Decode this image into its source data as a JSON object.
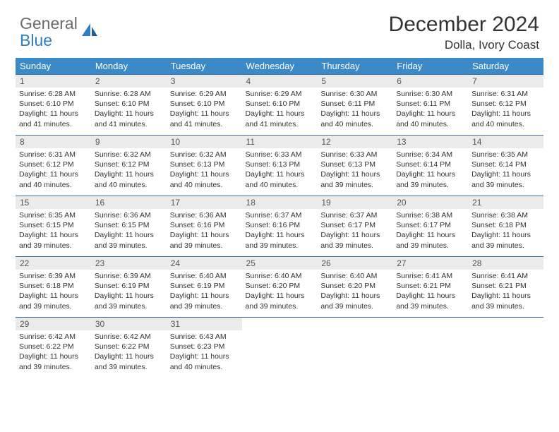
{
  "brand": {
    "line1": "General",
    "line2": "Blue"
  },
  "title": "December 2024",
  "location": "Dolla, Ivory Coast",
  "colors": {
    "header_bg": "#3b89c7",
    "header_text": "#ffffff",
    "daynum_bg": "#ebebeb",
    "row_border": "#3b6fa0",
    "logo_gray": "#6b6b6b",
    "logo_blue": "#2e7fc1"
  },
  "weekdays": [
    "Sunday",
    "Monday",
    "Tuesday",
    "Wednesday",
    "Thursday",
    "Friday",
    "Saturday"
  ],
  "days": [
    {
      "n": "1",
      "sr": "6:28 AM",
      "ss": "6:10 PM",
      "dl": "11 hours and 41 minutes."
    },
    {
      "n": "2",
      "sr": "6:28 AM",
      "ss": "6:10 PM",
      "dl": "11 hours and 41 minutes."
    },
    {
      "n": "3",
      "sr": "6:29 AM",
      "ss": "6:10 PM",
      "dl": "11 hours and 41 minutes."
    },
    {
      "n": "4",
      "sr": "6:29 AM",
      "ss": "6:10 PM",
      "dl": "11 hours and 41 minutes."
    },
    {
      "n": "5",
      "sr": "6:30 AM",
      "ss": "6:11 PM",
      "dl": "11 hours and 40 minutes."
    },
    {
      "n": "6",
      "sr": "6:30 AM",
      "ss": "6:11 PM",
      "dl": "11 hours and 40 minutes."
    },
    {
      "n": "7",
      "sr": "6:31 AM",
      "ss": "6:12 PM",
      "dl": "11 hours and 40 minutes."
    },
    {
      "n": "8",
      "sr": "6:31 AM",
      "ss": "6:12 PM",
      "dl": "11 hours and 40 minutes."
    },
    {
      "n": "9",
      "sr": "6:32 AM",
      "ss": "6:12 PM",
      "dl": "11 hours and 40 minutes."
    },
    {
      "n": "10",
      "sr": "6:32 AM",
      "ss": "6:13 PM",
      "dl": "11 hours and 40 minutes."
    },
    {
      "n": "11",
      "sr": "6:33 AM",
      "ss": "6:13 PM",
      "dl": "11 hours and 40 minutes."
    },
    {
      "n": "12",
      "sr": "6:33 AM",
      "ss": "6:13 PM",
      "dl": "11 hours and 39 minutes."
    },
    {
      "n": "13",
      "sr": "6:34 AM",
      "ss": "6:14 PM",
      "dl": "11 hours and 39 minutes."
    },
    {
      "n": "14",
      "sr": "6:35 AM",
      "ss": "6:14 PM",
      "dl": "11 hours and 39 minutes."
    },
    {
      "n": "15",
      "sr": "6:35 AM",
      "ss": "6:15 PM",
      "dl": "11 hours and 39 minutes."
    },
    {
      "n": "16",
      "sr": "6:36 AM",
      "ss": "6:15 PM",
      "dl": "11 hours and 39 minutes."
    },
    {
      "n": "17",
      "sr": "6:36 AM",
      "ss": "6:16 PM",
      "dl": "11 hours and 39 minutes."
    },
    {
      "n": "18",
      "sr": "6:37 AM",
      "ss": "6:16 PM",
      "dl": "11 hours and 39 minutes."
    },
    {
      "n": "19",
      "sr": "6:37 AM",
      "ss": "6:17 PM",
      "dl": "11 hours and 39 minutes."
    },
    {
      "n": "20",
      "sr": "6:38 AM",
      "ss": "6:17 PM",
      "dl": "11 hours and 39 minutes."
    },
    {
      "n": "21",
      "sr": "6:38 AM",
      "ss": "6:18 PM",
      "dl": "11 hours and 39 minutes."
    },
    {
      "n": "22",
      "sr": "6:39 AM",
      "ss": "6:18 PM",
      "dl": "11 hours and 39 minutes."
    },
    {
      "n": "23",
      "sr": "6:39 AM",
      "ss": "6:19 PM",
      "dl": "11 hours and 39 minutes."
    },
    {
      "n": "24",
      "sr": "6:40 AM",
      "ss": "6:19 PM",
      "dl": "11 hours and 39 minutes."
    },
    {
      "n": "25",
      "sr": "6:40 AM",
      "ss": "6:20 PM",
      "dl": "11 hours and 39 minutes."
    },
    {
      "n": "26",
      "sr": "6:40 AM",
      "ss": "6:20 PM",
      "dl": "11 hours and 39 minutes."
    },
    {
      "n": "27",
      "sr": "6:41 AM",
      "ss": "6:21 PM",
      "dl": "11 hours and 39 minutes."
    },
    {
      "n": "28",
      "sr": "6:41 AM",
      "ss": "6:21 PM",
      "dl": "11 hours and 39 minutes."
    },
    {
      "n": "29",
      "sr": "6:42 AM",
      "ss": "6:22 PM",
      "dl": "11 hours and 39 minutes."
    },
    {
      "n": "30",
      "sr": "6:42 AM",
      "ss": "6:22 PM",
      "dl": "11 hours and 39 minutes."
    },
    {
      "n": "31",
      "sr": "6:43 AM",
      "ss": "6:23 PM",
      "dl": "11 hours and 40 minutes."
    }
  ],
  "labels": {
    "sunrise": "Sunrise:",
    "sunset": "Sunset:",
    "daylight": "Daylight:"
  }
}
